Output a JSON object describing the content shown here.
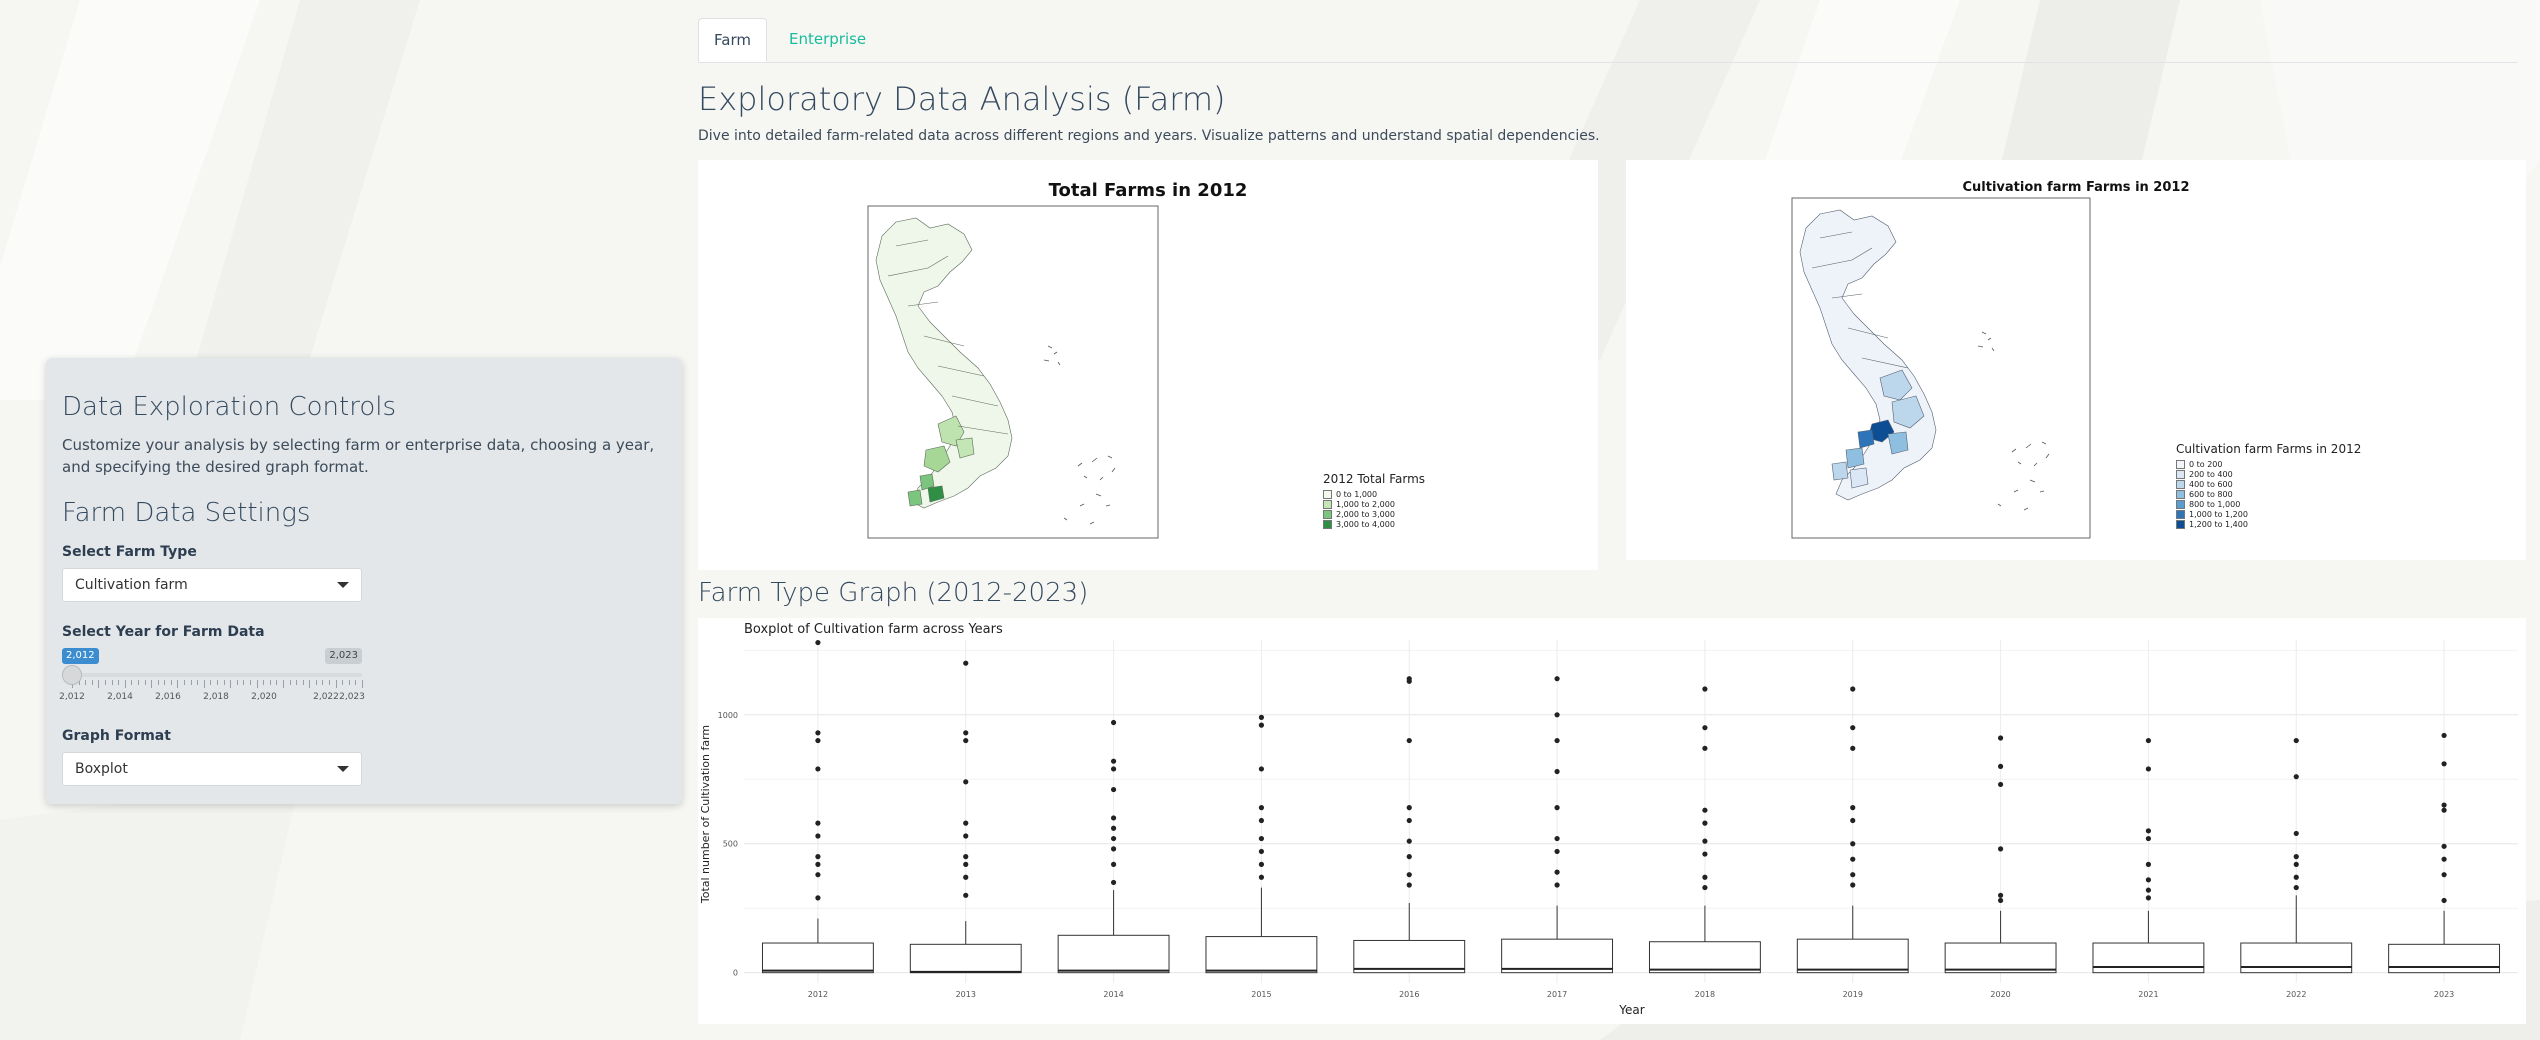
{
  "tabs": [
    {
      "label": "Farm",
      "active": true
    },
    {
      "label": "Enterprise",
      "active": false
    }
  ],
  "header": {
    "title": "Exploratory Data Analysis (Farm)",
    "subtitle": "Dive into detailed farm-related data across different regions and years. Visualize patterns and understand spatial dependencies."
  },
  "sidebar": {
    "title": "Data Exploration Controls",
    "description": "Customize your analysis by selecting farm or enterprise data, choosing a year, and specifying the desired graph format.",
    "section_title": "Farm Data Settings",
    "farm_type_label": "Select Farm Type",
    "farm_type_value": "Cultivation farm",
    "year_label": "Select Year for Farm Data",
    "year_min_badge": "2,012",
    "year_max_badge": "2,023",
    "year_tick_labels": [
      "2,012",
      "2,014",
      "2,016",
      "2,018",
      "2,020",
      "2,022",
      "2,023"
    ],
    "year_selected_value": 2012,
    "graph_format_label": "Graph Format",
    "graph_format_value": "Boxplot"
  },
  "map_left": {
    "title": "Total Farms in 2012",
    "legend_title": "2012 Total Farms",
    "legend_items": [
      {
        "label": "0 to 1,000",
        "color": "#f1f9ed"
      },
      {
        "label": "1,000 to 2,000",
        "color": "#c3e6b4"
      },
      {
        "label": "2,000 to 3,000",
        "color": "#7cc57e"
      },
      {
        "label": "3,000 to 4,000",
        "color": "#2f8f45"
      }
    ]
  },
  "map_right": {
    "title": "Cultivation farm Farms in 2012",
    "legend_title": "Cultivation farm Farms in 2012",
    "legend_items": [
      {
        "label": "0 to 200",
        "color": "#f2f6fb"
      },
      {
        "label": "200 to 400",
        "color": "#dbe7f4"
      },
      {
        "label": "400 to 600",
        "color": "#bcd6ec"
      },
      {
        "label": "600 to 800",
        "color": "#8fbfe0"
      },
      {
        "label": "800 to 1,000",
        "color": "#5a9ccf"
      },
      {
        "label": "1,000 to 1,200",
        "color": "#2d74b8"
      },
      {
        "label": "1,200 to 1,400",
        "color": "#0c4d94"
      }
    ]
  },
  "graph_section": {
    "title": "Farm Type Graph (2012-2023)"
  },
  "chart_data": {
    "type": "boxplot",
    "title": "Boxplot of Cultivation farm across Years",
    "xlabel": "Year",
    "ylabel": "Total number of Cultivation farm",
    "ylim": [
      -40,
      1290
    ],
    "yticks": [
      0,
      500,
      1000
    ],
    "grid": true,
    "categories": [
      "2012",
      "2013",
      "2014",
      "2015",
      "2016",
      "2017",
      "2018",
      "2019",
      "2020",
      "2021",
      "2022",
      "2023"
    ],
    "boxes": [
      {
        "q1": 0,
        "median": 8,
        "q3": 115,
        "whisker_high": 210,
        "outliers": [
          290,
          380,
          420,
          450,
          530,
          580,
          790,
          900,
          930,
          1280
        ]
      },
      {
        "q1": 0,
        "median": 3,
        "q3": 110,
        "whisker_high": 200,
        "outliers": [
          300,
          370,
          420,
          450,
          530,
          580,
          740,
          900,
          930,
          1200
        ]
      },
      {
        "q1": 0,
        "median": 8,
        "q3": 145,
        "whisker_high": 320,
        "outliers": [
          350,
          420,
          480,
          520,
          560,
          600,
          710,
          790,
          820,
          970
        ]
      },
      {
        "q1": 0,
        "median": 8,
        "q3": 140,
        "whisker_high": 330,
        "outliers": [
          370,
          420,
          470,
          520,
          590,
          640,
          790,
          960,
          990
        ]
      },
      {
        "q1": 0,
        "median": 15,
        "q3": 125,
        "whisker_high": 270,
        "outliers": [
          340,
          380,
          450,
          510,
          590,
          640,
          900,
          1130,
          1140
        ]
      },
      {
        "q1": 0,
        "median": 15,
        "q3": 130,
        "whisker_high": 260,
        "outliers": [
          340,
          390,
          470,
          520,
          640,
          780,
          900,
          1000,
          1140
        ]
      },
      {
        "q1": 0,
        "median": 12,
        "q3": 120,
        "whisker_high": 260,
        "outliers": [
          330,
          370,
          460,
          510,
          580,
          630,
          870,
          950,
          1100
        ]
      },
      {
        "q1": 0,
        "median": 12,
        "q3": 130,
        "whisker_high": 260,
        "outliers": [
          340,
          380,
          440,
          500,
          590,
          640,
          870,
          950,
          1100
        ]
      },
      {
        "q1": 0,
        "median": 12,
        "q3": 115,
        "whisker_high": 240,
        "outliers": [
          280,
          300,
          480,
          730,
          800,
          910
        ]
      },
      {
        "q1": 0,
        "median": 22,
        "q3": 115,
        "whisker_high": 240,
        "outliers": [
          290,
          320,
          360,
          420,
          520,
          550,
          790,
          900
        ]
      },
      {
        "q1": 0,
        "median": 22,
        "q3": 115,
        "whisker_high": 300,
        "outliers": [
          330,
          370,
          420,
          450,
          540,
          760,
          900
        ]
      },
      {
        "q1": 0,
        "median": 22,
        "q3": 110,
        "whisker_high": 240,
        "outliers": [
          280,
          380,
          440,
          490,
          630,
          650,
          810,
          920
        ]
      }
    ]
  }
}
